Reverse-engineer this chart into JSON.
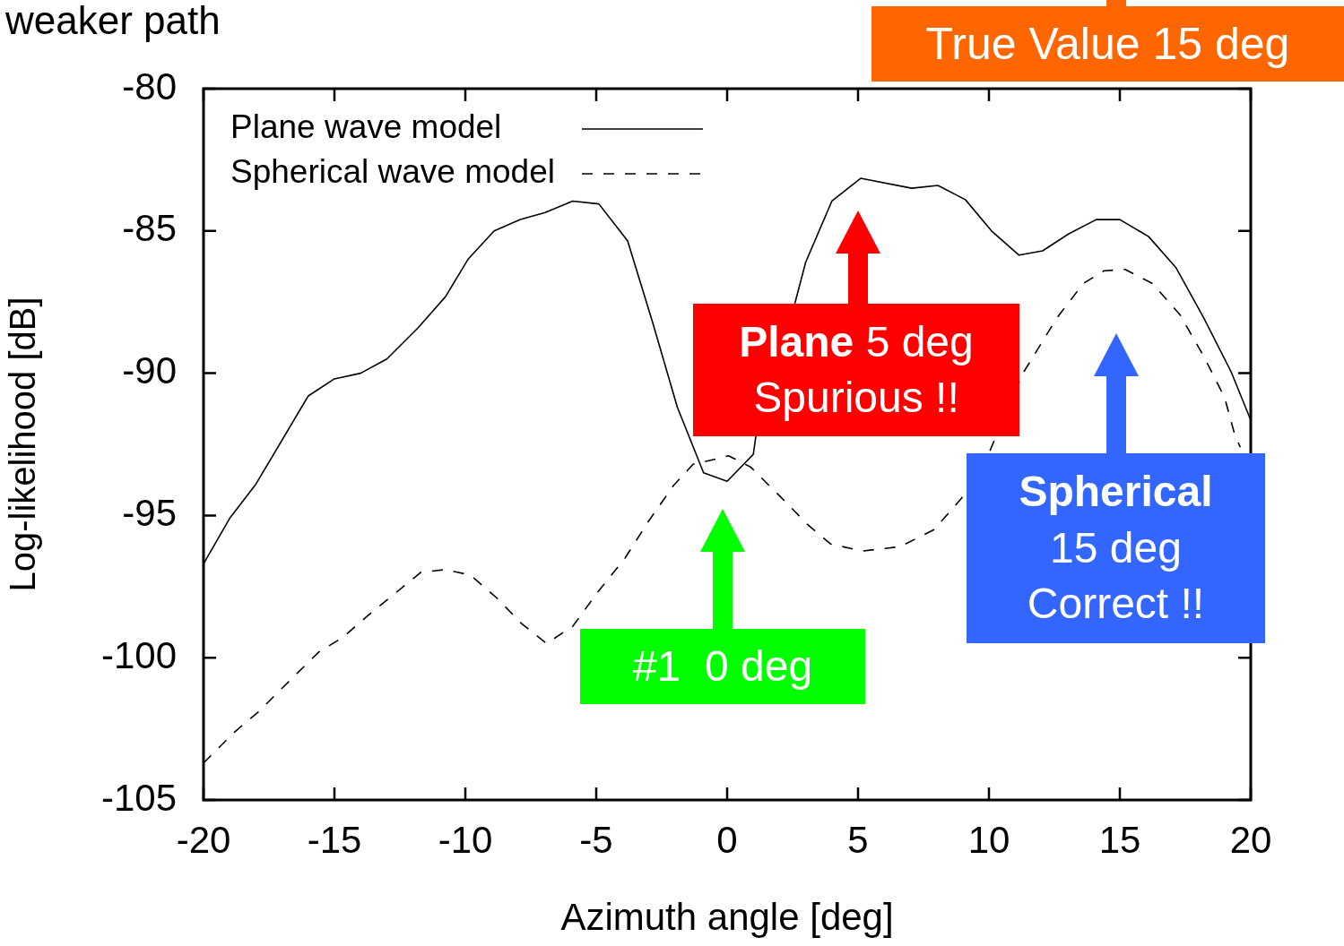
{
  "chart_data": {
    "type": "line",
    "title": "weaker path",
    "xlabel": "Azimuth angle [deg]",
    "ylabel": "Log-likelihood [dB]",
    "xlim": [
      -20,
      20
    ],
    "xticks": [
      -20,
      -15,
      -10,
      -5,
      0,
      5,
      10,
      15,
      20
    ],
    "ylim": [
      -105,
      -80
    ],
    "yticks": [
      -105,
      -100,
      -95,
      -90,
      -85,
      -80
    ],
    "legend": "top left",
    "marker": "none",
    "series": [
      {
        "name": "Plane wave model",
        "color": "#000000",
        "line_style": "solid",
        "x": [
          -20,
          -19,
          -18,
          -16,
          -15,
          -14,
          -13,
          -11.8,
          -10.75,
          -9.9,
          -8.9,
          -7.9,
          -6.95,
          -5.9,
          -4.9,
          -3.8,
          -2.85,
          -1.9,
          -0.9,
          0,
          1,
          1.1,
          2.6,
          3,
          4,
          5.1,
          7.05,
          8.05,
          9.1,
          10.1,
          11.15,
          12.05,
          13.05,
          14.1,
          15,
          16.1,
          17.15,
          18.2,
          19.25,
          20
        ],
        "values": [
          -96.7,
          -95.1,
          -93.9,
          -90.8,
          -90.2,
          -90.0,
          -89.5,
          -88.4,
          -87.3,
          -86.0,
          -85.0,
          -84.6,
          -84.35,
          -83.95,
          -84.05,
          -85.35,
          -88.2,
          -91.2,
          -93.5,
          -93.8,
          -92.85,
          -92.2,
          -87.5,
          -86.1,
          -83.95,
          -83.15,
          -83.5,
          -83.4,
          -83.9,
          -85.0,
          -85.85,
          -85.7,
          -85.1,
          -84.6,
          -84.6,
          -85.2,
          -86.3,
          -88.05,
          -89.95,
          -91.65
        ]
      },
      {
        "name": "Spherical wave model",
        "color": "#000000",
        "line_style": "dashed",
        "x": [
          -20,
          -18.8,
          -17.9,
          -16.7,
          -15.6,
          -14.7,
          -13.7,
          -12.7,
          -11.7,
          -10.75,
          -9.8,
          -8.8,
          -7.85,
          -6.9,
          -5.9,
          -4.95,
          -3.9,
          -3,
          -2.05,
          -1.3,
          -0.35,
          0.05,
          0.9,
          2.1,
          3.05,
          3.95,
          5.15,
          6.6,
          7.9,
          8.95,
          10.05,
          11.3,
          12.6,
          13.6,
          14.4,
          15.2,
          16.25,
          17.3,
          18.2,
          19,
          19.4,
          19.6
        ],
        "values": [
          -103.7,
          -102.6,
          -101.9,
          -100.8,
          -99.8,
          -99.3,
          -98.5,
          -97.75,
          -97.0,
          -96.9,
          -97.1,
          -97.9,
          -98.8,
          -99.5,
          -98.9,
          -97.7,
          -96.5,
          -95.2,
          -93.95,
          -93.2,
          -93.0,
          -92.9,
          -93.3,
          -94.4,
          -95.3,
          -96.0,
          -96.25,
          -96.1,
          -95.5,
          -94.4,
          -92.7,
          -90.0,
          -88.05,
          -86.85,
          -86.4,
          -86.35,
          -86.85,
          -87.95,
          -89.4,
          -90.85,
          -92.2,
          -92.6
        ]
      }
    ],
    "annotations": [
      "True Value 15 deg",
      "Plane 5 deg Spurious !!",
      "#1  0 deg",
      "Spherical 15 deg Correct !!"
    ]
  }
}
